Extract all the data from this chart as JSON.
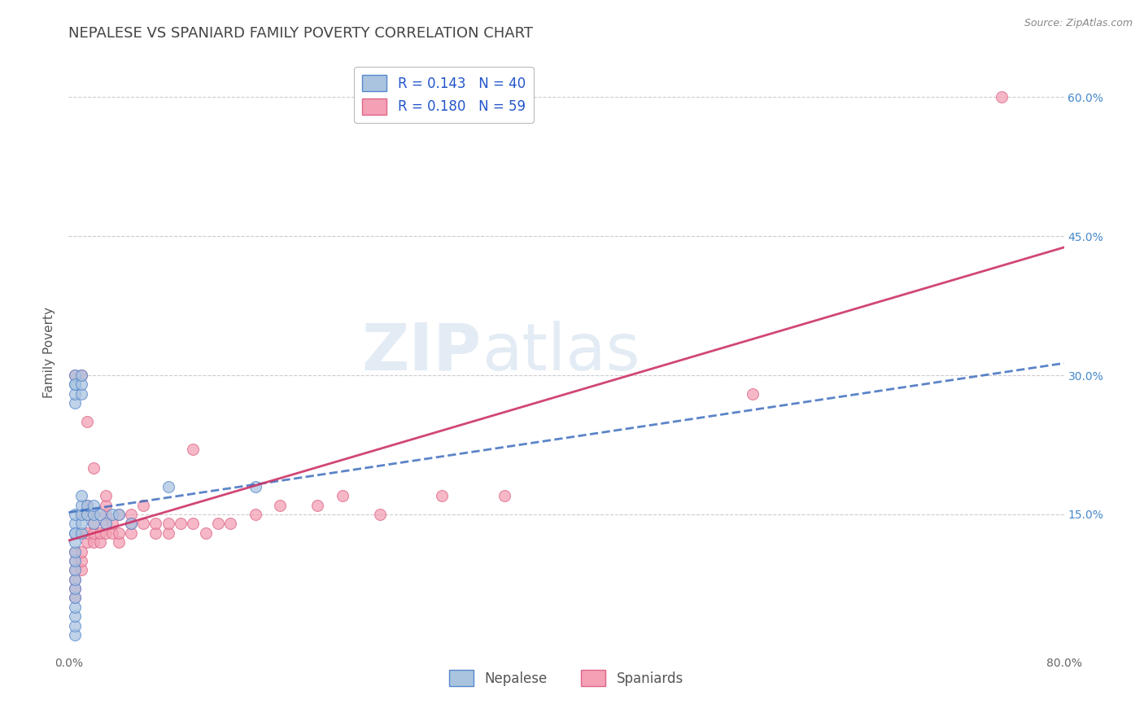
{
  "title": "NEPALESE VS SPANIARD FAMILY POVERTY CORRELATION CHART",
  "source": "Source: ZipAtlas.com",
  "xlabel": "",
  "ylabel": "Family Poverty",
  "xlim": [
    0.0,
    0.8
  ],
  "ylim": [
    0.0,
    0.65
  ],
  "xtick_pos": [
    0.0,
    0.2,
    0.4,
    0.6,
    0.8
  ],
  "xtick_labels": [
    "0.0%",
    "",
    "",
    "",
    "80.0%"
  ],
  "ytick_pos": [
    0.15,
    0.3,
    0.45,
    0.6
  ],
  "ytick_labels": [
    "15.0%",
    "30.0%",
    "45.0%",
    "60.0%"
  ],
  "grid_color": "#cccccc",
  "background_color": "#ffffff",
  "watermark_zip": "ZIP",
  "watermark_atlas": "atlas",
  "legend_R_nepalese": "R = 0.143",
  "legend_N_nepalese": "N = 40",
  "legend_R_spaniard": "R = 0.180",
  "legend_N_spaniard": "N = 59",
  "nepalese_fill_color": "#aac4e0",
  "nepalese_edge_color": "#5588cc",
  "spaniard_fill_color": "#f4a0b5",
  "spaniard_edge_color": "#dd6688",
  "nepalese_line_color": "#3366bb",
  "spaniard_line_color": "#cc3366",
  "nepalese_x": [
    0.005,
    0.005,
    0.005,
    0.005,
    0.005,
    0.005,
    0.005,
    0.005,
    0.005,
    0.005,
    0.005,
    0.005,
    0.005,
    0.005,
    0.005,
    0.005,
    0.005,
    0.005,
    0.005,
    0.005,
    0.01,
    0.01,
    0.01,
    0.01,
    0.01,
    0.01,
    0.01,
    0.01,
    0.015,
    0.015,
    0.02,
    0.02,
    0.02,
    0.025,
    0.03,
    0.035,
    0.04,
    0.05,
    0.08,
    0.15
  ],
  "nepalese_y": [
    0.02,
    0.03,
    0.04,
    0.05,
    0.06,
    0.07,
    0.08,
    0.09,
    0.1,
    0.11,
    0.12,
    0.13,
    0.14,
    0.15,
    0.27,
    0.28,
    0.29,
    0.3,
    0.13,
    0.29,
    0.13,
    0.14,
    0.15,
    0.16,
    0.17,
    0.28,
    0.29,
    0.3,
    0.15,
    0.16,
    0.14,
    0.15,
    0.16,
    0.15,
    0.14,
    0.15,
    0.15,
    0.14,
    0.18,
    0.18
  ],
  "spaniard_x": [
    0.005,
    0.005,
    0.005,
    0.005,
    0.005,
    0.005,
    0.005,
    0.01,
    0.01,
    0.01,
    0.01,
    0.01,
    0.01,
    0.015,
    0.015,
    0.015,
    0.015,
    0.015,
    0.02,
    0.02,
    0.02,
    0.02,
    0.02,
    0.025,
    0.025,
    0.03,
    0.03,
    0.03,
    0.03,
    0.03,
    0.035,
    0.035,
    0.04,
    0.04,
    0.04,
    0.05,
    0.05,
    0.05,
    0.06,
    0.06,
    0.07,
    0.07,
    0.08,
    0.08,
    0.09,
    0.1,
    0.1,
    0.11,
    0.12,
    0.13,
    0.15,
    0.17,
    0.2,
    0.22,
    0.25,
    0.3,
    0.35,
    0.55,
    0.75
  ],
  "spaniard_y": [
    0.06,
    0.07,
    0.08,
    0.09,
    0.1,
    0.11,
    0.3,
    0.09,
    0.1,
    0.11,
    0.13,
    0.15,
    0.3,
    0.12,
    0.13,
    0.15,
    0.16,
    0.25,
    0.12,
    0.13,
    0.14,
    0.15,
    0.2,
    0.12,
    0.13,
    0.13,
    0.14,
    0.15,
    0.16,
    0.17,
    0.13,
    0.14,
    0.12,
    0.13,
    0.15,
    0.13,
    0.14,
    0.15,
    0.14,
    0.16,
    0.13,
    0.14,
    0.13,
    0.14,
    0.14,
    0.14,
    0.22,
    0.13,
    0.14,
    0.14,
    0.15,
    0.16,
    0.16,
    0.17,
    0.15,
    0.17,
    0.17,
    0.28,
    0.6
  ],
  "marker_size": 100,
  "marker_alpha": 0.75,
  "title_fontsize": 13,
  "label_fontsize": 11,
  "tick_fontsize": 10,
  "legend_fontsize": 12,
  "tick_color": "#4488cc",
  "title_color": "#444444",
  "ylabel_color": "#555555"
}
